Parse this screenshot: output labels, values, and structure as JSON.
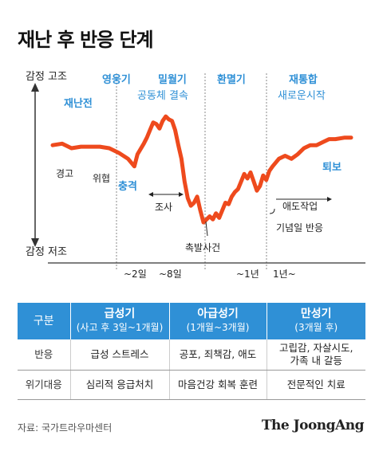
{
  "title": "재난 후 반응 단계",
  "chart_data": {
    "type": "line",
    "title": "재난 후 반응 단계",
    "y_axis": {
      "top_label": "감정 고조",
      "bottom_label": "감정 저조"
    },
    "x_ticks": [
      "~2일",
      "~8일",
      "~1년",
      "1년~"
    ],
    "phases": [
      {
        "name": "재난전",
        "subtitle": ""
      },
      {
        "name": "영웅기",
        "subtitle": ""
      },
      {
        "name": "밀월기",
        "subtitle": "공동체 결속"
      },
      {
        "name": "환멸기",
        "subtitle": ""
      },
      {
        "name": "재통합",
        "subtitle": "새로운시작"
      }
    ],
    "series": [
      {
        "values": [
          [
            0,
            62
          ],
          [
            3,
            63
          ],
          [
            6,
            60
          ],
          [
            9,
            61
          ],
          [
            12,
            61
          ],
          [
            15,
            61
          ],
          [
            18,
            60
          ],
          [
            21,
            57
          ],
          [
            24,
            53
          ],
          [
            26,
            48
          ],
          [
            27,
            56
          ],
          [
            29,
            63
          ],
          [
            30,
            67
          ],
          [
            31,
            72
          ],
          [
            32,
            77
          ],
          [
            33,
            76
          ],
          [
            34,
            73
          ],
          [
            35,
            78
          ],
          [
            36,
            81
          ],
          [
            37,
            79
          ],
          [
            38,
            78
          ],
          [
            39,
            72
          ],
          [
            40,
            62
          ],
          [
            41,
            53
          ],
          [
            42,
            38
          ],
          [
            43,
            27
          ],
          [
            44,
            22
          ],
          [
            45,
            24
          ],
          [
            46,
            28
          ],
          [
            47,
            19
          ],
          [
            48,
            11
          ],
          [
            49,
            13
          ],
          [
            50,
            15
          ],
          [
            51,
            13
          ],
          [
            52,
            17
          ],
          [
            53,
            14
          ],
          [
            54,
            19
          ],
          [
            55,
            24
          ],
          [
            56,
            23
          ],
          [
            57,
            28
          ],
          [
            58,
            31
          ],
          [
            59,
            33
          ],
          [
            60,
            38
          ],
          [
            61,
            43
          ],
          [
            62,
            40
          ],
          [
            63,
            44
          ],
          [
            64,
            38
          ],
          [
            65,
            32
          ],
          [
            66,
            35
          ],
          [
            67,
            42
          ],
          [
            68,
            39
          ],
          [
            69,
            45
          ],
          [
            70,
            48
          ],
          [
            72,
            53
          ],
          [
            74,
            55
          ],
          [
            76,
            53
          ],
          [
            78,
            56
          ],
          [
            80,
            60
          ],
          [
            82,
            62
          ],
          [
            84,
            62
          ],
          [
            86,
            64
          ],
          [
            88,
            66
          ],
          [
            90,
            66
          ],
          [
            93,
            67
          ],
          [
            95,
            67
          ]
        ]
      }
    ],
    "annotations": [
      "경고",
      "위협",
      "충격",
      "조사",
      "촉발사건",
      "애도작업",
      "기념일 반응",
      "퇴보"
    ],
    "colors": {
      "line": "#ee4a1d",
      "accent": "#2f90d6",
      "text": "#222222"
    }
  },
  "table": {
    "headers": [
      {
        "main": "구분",
        "sub": ""
      },
      {
        "main": "급성기",
        "sub": "(사고 후 3일~1개월)"
      },
      {
        "main": "아급성기",
        "sub": "(1개월~3개월)"
      },
      {
        "main": "만성기",
        "sub": "(3개월 후)"
      }
    ],
    "rows": [
      [
        "반응",
        "급성 스트레스",
        "공포, 죄책감, 애도",
        "고립감, 자살시도,\n가족 내 갈등"
      ],
      [
        "위기대응",
        "심리적 응급처치",
        "마음건강 회복 훈련",
        "전문적인 치료"
      ]
    ]
  },
  "source": "자료: 국가트라우마센터",
  "brand": "The JoongAng"
}
